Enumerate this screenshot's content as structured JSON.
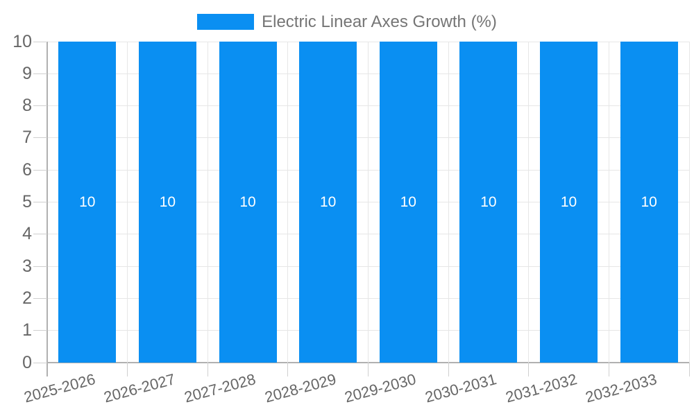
{
  "chart_data": {
    "type": "bar",
    "title": "Electric Linear Axes Growth (%)",
    "categories": [
      "2025-2026",
      "2026-2027",
      "2027-2028",
      "2028-2029",
      "2029-2030",
      "2030-2031",
      "2031-2032",
      "2032-2033"
    ],
    "series": [
      {
        "name": "Electric Linear Axes Growth (%)",
        "values": [
          10,
          10,
          10,
          10,
          10,
          10,
          10,
          10
        ]
      }
    ],
    "bar_value_labels": [
      "10",
      "10",
      "10",
      "10",
      "10",
      "10",
      "10",
      "10"
    ],
    "xlabel": "",
    "ylabel": "",
    "ylim": [
      0,
      10
    ],
    "ytick_labels": [
      "0",
      "1",
      "2",
      "3",
      "4",
      "5",
      "6",
      "7",
      "8",
      "9",
      "10"
    ],
    "ytick_step": 1,
    "grid": "both",
    "legend_position": "top",
    "x_label_rotation_deg": -15
  },
  "legend": {
    "label": "Electric Linear Axes Growth (%)"
  },
  "colors": {
    "bar": "#0a8ff2",
    "grid": "#e6e6e6",
    "axis": "#b0b0b0",
    "tick": "#cfcfcf",
    "axis_text": "#666666",
    "title_text": "#757575",
    "bar_label_text": "#ffffff",
    "background": "#ffffff"
  }
}
